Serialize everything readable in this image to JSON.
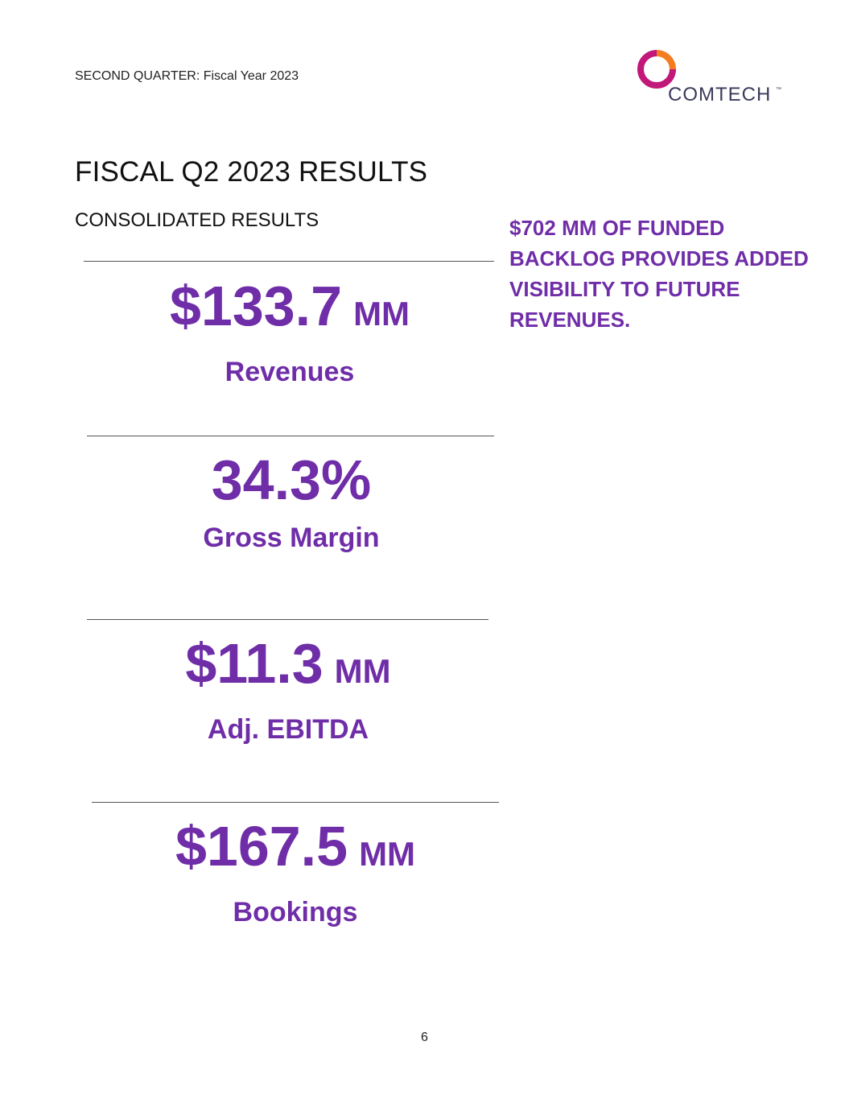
{
  "header": {
    "text": "SECOND QUARTER: Fiscal Year 2023"
  },
  "logo": {
    "word": "COMTECH",
    "tm": "™",
    "icon": "comtech-ring-icon"
  },
  "title": "FISCAL Q2 2023 RESULTS",
  "section": "CONSOLIDATED RESULTS",
  "callout": "$702 MM OF FUNDED BACKLOG PROVIDES ADDED VISIBILITY TO FUTURE REVENUES.",
  "metrics": [
    {
      "value": "$133.7",
      "unit": "MM",
      "label": "Revenues"
    },
    {
      "value": "34.3%",
      "unit": "",
      "label": "Gross Margin"
    },
    {
      "value": "$11.3",
      "unit": "MM",
      "label": "Adj. EBITDA"
    },
    {
      "value": "$167.5",
      "unit": "MM",
      "label": "Bookings"
    }
  ],
  "page_number": "6",
  "colors": {
    "accent": "#6f2da8",
    "logo_orange": "#f47c20",
    "logo_magenta": "#c2187a"
  }
}
